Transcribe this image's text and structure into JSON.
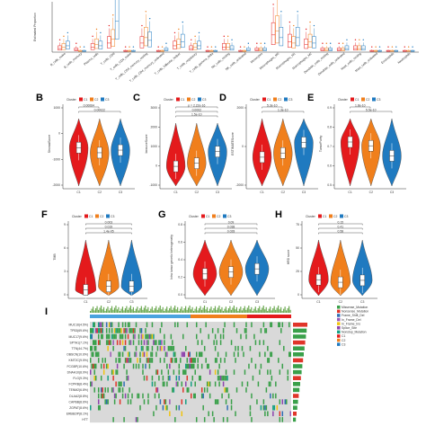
{
  "colors": {
    "C1": "#e41a1c",
    "C2": "#f07f1c",
    "C3": "#1f7ac0"
  },
  "panels": {
    "A": {
      "ylabel": "Estimated Proportion",
      "categories": [
        "B_cells_naive",
        "B_cells_memory",
        "Plasma_cells",
        "T_cells_CD8",
        "T_cells_CD4_naive",
        "T_cells_CD4_memory_resting",
        "T_cells_CD4_memory_activated",
        "T_cells_follicular_helper",
        "T_cells_regulatory",
        "T_cells_gamma_delta",
        "NK_cells_resting",
        "NK_cells_activated",
        "Monocytes",
        "Macrophages_M0",
        "Macrophages_M1",
        "Macrophages_M2",
        "Dendritic_cells_resting",
        "Dendritic_cells_activated",
        "Mast_cells_resting",
        "Mast_cells_activated",
        "Eosinophils",
        "Neutrophils"
      ],
      "values_C1": [
        0.02,
        0.01,
        0.03,
        0.06,
        0.0,
        0.06,
        0.0,
        0.04,
        0.02,
        0.0,
        0.03,
        0.0,
        0.01,
        0.12,
        0.07,
        0.05,
        0.01,
        0.01,
        0.02,
        0.0,
        0.0,
        0.0
      ],
      "values_C2": [
        0.03,
        0.0,
        0.05,
        0.09,
        0.0,
        0.1,
        0.0,
        0.05,
        0.03,
        0.0,
        0.03,
        0.0,
        0.01,
        0.15,
        0.06,
        0.07,
        0.01,
        0.01,
        0.02,
        0.0,
        0.0,
        0.0
      ],
      "values_C3": [
        0.04,
        0.0,
        0.04,
        0.22,
        0.0,
        0.08,
        0.01,
        0.07,
        0.04,
        0.0,
        0.02,
        0.01,
        0.01,
        0.1,
        0.1,
        0.06,
        0.01,
        0.02,
        0.02,
        0.0,
        0.0,
        0.0
      ]
    },
    "B": {
      "ylabel": "StromalScore",
      "ticks": [
        "1000",
        "0",
        "-1000",
        "-2000"
      ],
      "ymin": -2300,
      "ymax": 1400,
      "medians": [
        -250,
        -520,
        -380
      ],
      "pvals": [
        "0.00064",
        "0.00022"
      ]
    },
    "C": {
      "ylabel": "ImmuneScore",
      "ticks": [
        "3000",
        "2000",
        "1000",
        "0",
        "-1000"
      ],
      "ymin": -1200,
      "ymax": 3400,
      "medians": [
        200,
        420,
        1250
      ],
      "pvals": [
        "p = 2.22e-16",
        "0.0002",
        "1.5e-10"
      ]
    },
    "D": {
      "ylabel": "ESTIMATEScore",
      "ticks": [
        "2000",
        "0",
        "-2000"
      ],
      "ymin": -2700,
      "ymax": 2700,
      "medians": [
        -450,
        -120,
        700
      ],
      "pvals": [
        "5.3e-10",
        "1.3e-10"
      ]
    },
    "E": {
      "ylabel": "TumorPurity",
      "ticks": [
        "0.9",
        "0.8",
        "0.7",
        "0.6",
        "0.5"
      ],
      "ymin": 0.45,
      "ymax": 1.0,
      "medians": [
        0.8,
        0.77,
        0.69
      ],
      "pvals": [
        "1.8e-10",
        "5.5e-10"
      ]
    },
    "F": {
      "ylabel": "TMB",
      "ticks": [
        "9",
        "6",
        "3",
        "0"
      ],
      "ymin": 0,
      "ymax": 10,
      "medians": [
        1.0,
        1.6,
        1.6
      ],
      "pvals": [
        "0.003",
        "0.019",
        "1.4e-05"
      ]
    },
    "G": {
      "ylabel": "Intra tumor genetic heterogeneity",
      "ticks": [
        "0.8",
        "0.6",
        "0.4",
        "0.2",
        "0.0"
      ],
      "ymin": 0,
      "ymax": 0.9,
      "medians": [
        0.34,
        0.37,
        0.42
      ],
      "pvals": [
        "0.09",
        "0.038",
        "0.028"
      ]
    },
    "H": {
      "ylabel": "HRD score",
      "ticks": [
        "75",
        "50",
        "25",
        "0"
      ],
      "ymin": 0,
      "ymax": 90,
      "medians": [
        25,
        21,
        24
      ],
      "pvals": [
        "0.15",
        "0.41",
        "0.58"
      ]
    },
    "I": {
      "genes": [
        "MUC16(4.5%)",
        "TP53(69.6%)",
        "MUC17(9.6%)",
        "SPTA1(7.1%)",
        "TTN(44.7%)",
        "OBSCN(10.6%)",
        "KMT2C(9.5%)",
        "FCGBP(10.6%)",
        "DNAH10(8.9%)",
        "FLG(9.3%)",
        "FCPRB(8.4%)",
        "TENM2(6.8%)",
        "DLAA2(8.8%)",
        "CAPBB(8.6%)",
        "ZGPAT(8.6%)",
        "ERBB2IP(8.1%)",
        "HTT"
      ],
      "legend": [
        "Missense_Mutation",
        "Nonsense_Mutation",
        "Frame_Shift_Del",
        "In_Frame_Del",
        "In_Frame_Ins",
        "Splice_Site",
        "Nonstop_Mutation",
        "C1",
        "C2",
        "C3"
      ]
    }
  },
  "legend_title": "Cluster",
  "groups": [
    "C1",
    "C2",
    "C3"
  ]
}
